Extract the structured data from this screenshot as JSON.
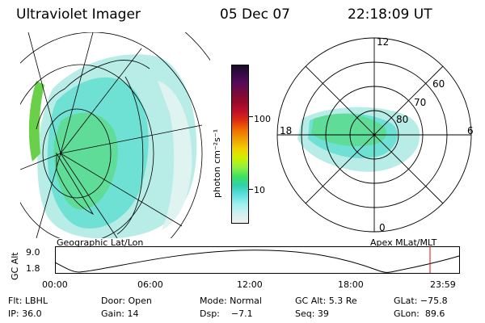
{
  "header": {
    "instrument": "Ultraviolet Imager",
    "date": "05 Dec 07",
    "time": "22:18:09 UT"
  },
  "left_panel": {
    "caption": "Geographic Lat/Lon"
  },
  "right_panel": {
    "caption": "Apex MLat/MLT",
    "mlt_labels": {
      "top": "12",
      "left": "18",
      "right": "6",
      "bottom": "0"
    },
    "mlat_labels": [
      "60",
      "70",
      "80"
    ]
  },
  "colorbar": {
    "unit_label": "photon cm⁻²s⁻¹",
    "ticks": [
      "100",
      "10"
    ],
    "colors": [
      "#1a0a2a",
      "#3a0a4a",
      "#5a0a5a",
      "#7a0a3a",
      "#9a0a2a",
      "#c0102a",
      "#e03010",
      "#f07000",
      "#f0a000",
      "#f0d000",
      "#d0f000",
      "#90f040",
      "#40e060",
      "#30d0b0",
      "#60e0e0",
      "#a0f0f0",
      "#d0f0f0",
      "#f0f0f0"
    ]
  },
  "altitude_plot": {
    "ylabel": "GC Alt",
    "y_ticks": [
      "9.0",
      "1.8"
    ],
    "x_ticks": [
      "00:00",
      "06:00",
      "12:00",
      "18:00",
      "23:59"
    ],
    "current_time_color": "#d01010"
  },
  "status": {
    "row1": {
      "filter": "Flt: LBHL",
      "door": "Door: Open",
      "mode": "Mode: Normal",
      "gc_alt": "GC Alt: 5.3 Re",
      "glat": "GLat: −75.8"
    },
    "row2": {
      "ip": "IP: 36.0",
      "gain": "Gain: 14",
      "dsp": "Dsp:    −7.1",
      "seq": "Seq: 39",
      "glon": "GLon:  89.6"
    }
  }
}
